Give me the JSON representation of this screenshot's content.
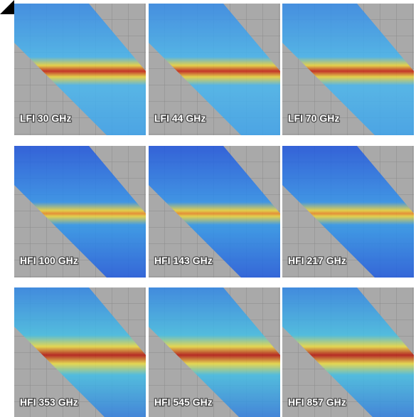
{
  "panels": [
    {
      "label": "LFI 30 GHz"
    },
    {
      "label": "LFI 44 GHz"
    },
    {
      "label": "LFI 70 GHz"
    },
    {
      "label": "HFI 100 GHz"
    },
    {
      "label": "HFI 143 GHz"
    },
    {
      "label": "HFI 217 GHz"
    },
    {
      "label": "HFI 353 GHz"
    },
    {
      "label": "HFI 545 GHz"
    },
    {
      "label": "HFI 857 GHz"
    }
  ]
}
